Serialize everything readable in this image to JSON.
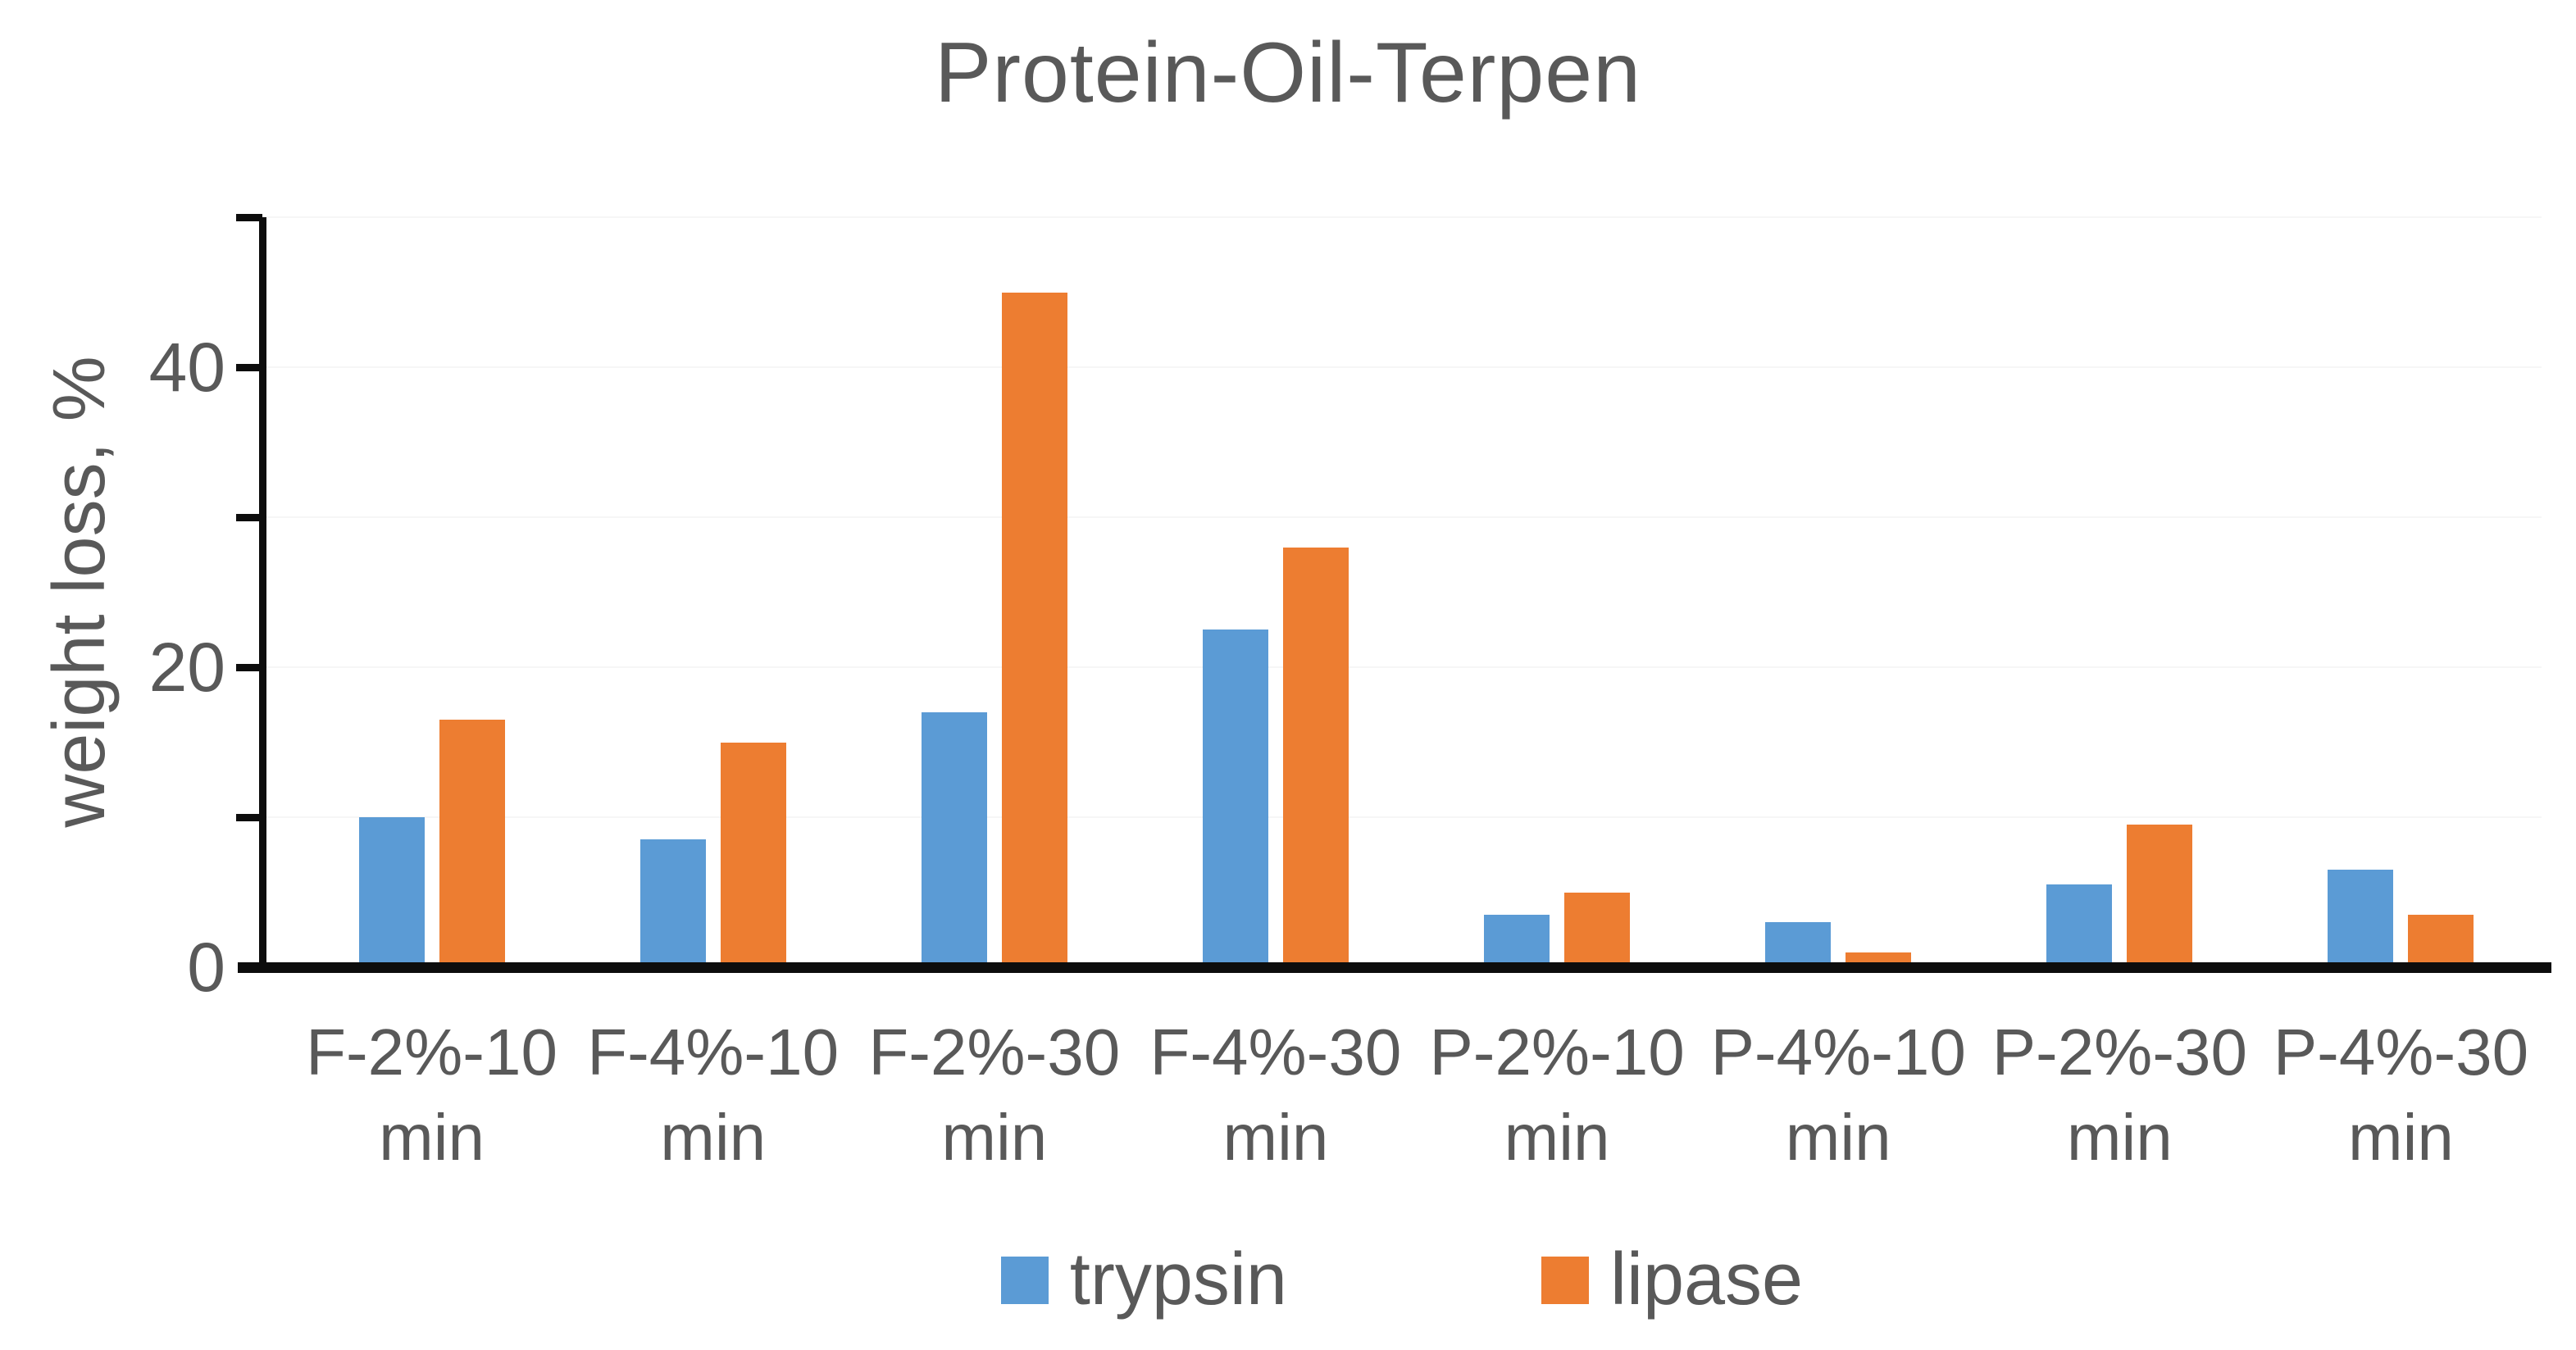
{
  "chart_data": {
    "type": "bar",
    "title": "Protein-Oil-Terpen",
    "xlabel": "",
    "ylabel": "weight loss, %",
    "categories": [
      "F-2%-10 min",
      "F-4%-10 min",
      "F-2%-30 min",
      "F-4%-30 min",
      "P-2%-10 min",
      "P-4%-10 min",
      "P-2%-30 min",
      "P-4%-30 min"
    ],
    "series": [
      {
        "name": "trypsin",
        "color": "#5B9BD5",
        "values": [
          10,
          8.5,
          17,
          22.5,
          3.5,
          3,
          5.5,
          6.5
        ]
      },
      {
        "name": "lipase",
        "color": "#ED7D31",
        "values": [
          16.5,
          15,
          45,
          28,
          5,
          1,
          9.5,
          3.5
        ]
      }
    ],
    "ylim": [
      0,
      50
    ],
    "y_axis": {
      "ticks": [
        0,
        10,
        20,
        30,
        40,
        50
      ],
      "labeled_ticks": [
        {
          "value": 0,
          "label": "0"
        },
        {
          "value": 20,
          "label": "20"
        },
        {
          "value": 40,
          "label": "40"
        }
      ]
    },
    "grid": false,
    "legend_position": "bottom"
  },
  "colors": {
    "text": "#595959",
    "axis": "#000000",
    "background": "#FFFFFF"
  }
}
